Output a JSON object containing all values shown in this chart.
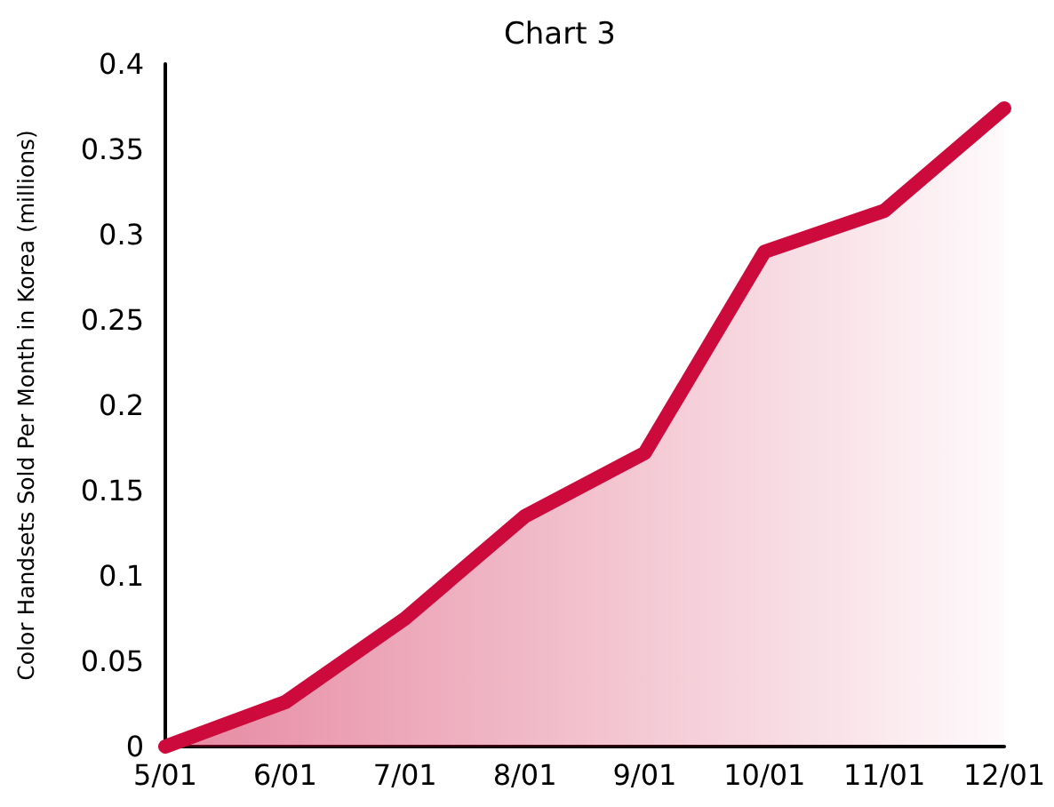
{
  "chart_data": {
    "type": "area",
    "title": "Chart 3",
    "ylabel": "Color Handsets Sold Per Month in Korea (millions)",
    "categories": [
      "5/01",
      "6/01",
      "7/01",
      "8/01",
      "9/01",
      "10/01",
      "11/01",
      "12/01"
    ],
    "series": [
      {
        "color": "#cc0a3c",
        "values": [
          0,
          0.026,
          0.075,
          0.135,
          0.172,
          0.29,
          0.314,
          0.374
        ]
      }
    ],
    "ylim": [
      0,
      0.4
    ],
    "yticks": [
      0,
      0.05,
      0.1,
      0.15,
      0.2,
      0.25,
      0.3,
      0.35,
      0.4
    ],
    "grid": false,
    "line_style": "solid"
  }
}
